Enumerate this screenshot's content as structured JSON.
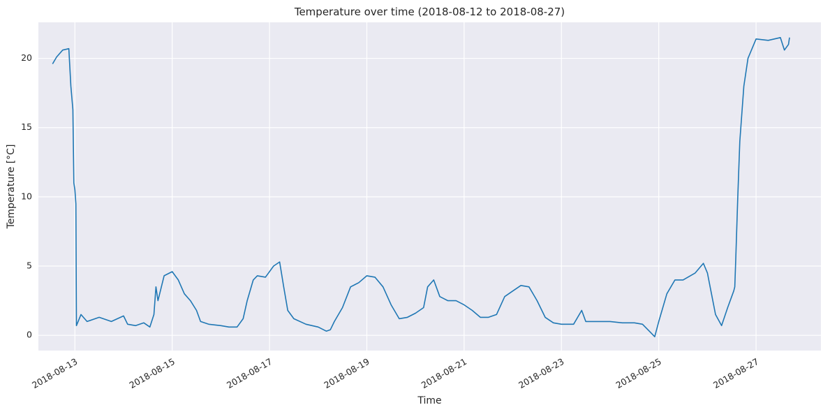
{
  "chart_data": {
    "type": "line",
    "title": "Temperature over time (2018-08-12 to 2018-08-27)",
    "xlabel": "Time",
    "ylabel": "Temperature [°C]",
    "x_range": [
      "2018-08-12T06:00",
      "2018-08-28T08:00"
    ],
    "ylim": [
      -1.1,
      22.6
    ],
    "x_ticks": [
      "2018-08-13",
      "2018-08-15",
      "2018-08-17",
      "2018-08-19",
      "2018-08-21",
      "2018-08-23",
      "2018-08-25",
      "2018-08-27"
    ],
    "y_ticks": [
      0,
      5,
      10,
      15,
      20
    ],
    "grid": true,
    "colors": {
      "background": "#eaeaf2",
      "grid": "#ffffff",
      "line": "#1f77b4",
      "text": "#262626"
    },
    "series": [
      {
        "color": "#1f77b4",
        "points": [
          [
            "2018-08-12T13:00",
            19.6
          ],
          [
            "2018-08-12T15:00",
            20.1
          ],
          [
            "2018-08-12T18:00",
            20.6
          ],
          [
            "2018-08-12T21:00",
            20.7
          ],
          [
            "2018-08-12T22:00",
            18.0
          ],
          [
            "2018-08-12T23:00",
            16.3
          ],
          [
            "2018-08-12T23:30",
            11.0
          ],
          [
            "2018-08-13T00:00",
            10.5
          ],
          [
            "2018-08-13T00:30",
            9.5
          ],
          [
            "2018-08-13T00:45",
            0.7
          ],
          [
            "2018-08-13T03:00",
            1.5
          ],
          [
            "2018-08-13T06:00",
            1.0
          ],
          [
            "2018-08-13T12:00",
            1.3
          ],
          [
            "2018-08-13T18:00",
            1.0
          ],
          [
            "2018-08-14T00:00",
            1.4
          ],
          [
            "2018-08-14T02:00",
            0.8
          ],
          [
            "2018-08-14T06:00",
            0.7
          ],
          [
            "2018-08-14T10:00",
            0.9
          ],
          [
            "2018-08-14T13:00",
            0.6
          ],
          [
            "2018-08-14T15:00",
            1.5
          ],
          [
            "2018-08-14T16:00",
            3.5
          ],
          [
            "2018-08-14T17:00",
            2.5
          ],
          [
            "2018-08-14T20:00",
            4.3
          ],
          [
            "2018-08-15T00:00",
            4.6
          ],
          [
            "2018-08-15T03:00",
            4.0
          ],
          [
            "2018-08-15T06:00",
            3.0
          ],
          [
            "2018-08-15T09:00",
            2.5
          ],
          [
            "2018-08-15T12:00",
            1.8
          ],
          [
            "2018-08-15T14:00",
            1.0
          ],
          [
            "2018-08-15T18:00",
            0.8
          ],
          [
            "2018-08-16T00:00",
            0.7
          ],
          [
            "2018-08-16T04:00",
            0.6
          ],
          [
            "2018-08-16T08:00",
            0.6
          ],
          [
            "2018-08-16T11:00",
            1.2
          ],
          [
            "2018-08-16T13:00",
            2.5
          ],
          [
            "2018-08-16T16:00",
            4.0
          ],
          [
            "2018-08-16T18:00",
            4.3
          ],
          [
            "2018-08-16T22:00",
            4.2
          ],
          [
            "2018-08-17T02:00",
            5.0
          ],
          [
            "2018-08-17T05:00",
            5.3
          ],
          [
            "2018-08-17T07:00",
            3.5
          ],
          [
            "2018-08-17T09:00",
            1.8
          ],
          [
            "2018-08-17T12:00",
            1.2
          ],
          [
            "2018-08-17T18:00",
            0.8
          ],
          [
            "2018-08-18T00:00",
            0.6
          ],
          [
            "2018-08-18T04:00",
            0.3
          ],
          [
            "2018-08-18T06:00",
            0.4
          ],
          [
            "2018-08-18T08:00",
            1.0
          ],
          [
            "2018-08-18T12:00",
            2.0
          ],
          [
            "2018-08-18T16:00",
            3.5
          ],
          [
            "2018-08-18T20:00",
            3.8
          ],
          [
            "2018-08-19T00:00",
            4.3
          ],
          [
            "2018-08-19T04:00",
            4.2
          ],
          [
            "2018-08-19T08:00",
            3.5
          ],
          [
            "2018-08-19T12:00",
            2.2
          ],
          [
            "2018-08-19T16:00",
            1.2
          ],
          [
            "2018-08-19T20:00",
            1.3
          ],
          [
            "2018-08-20T00:00",
            1.6
          ],
          [
            "2018-08-20T04:00",
            2.0
          ],
          [
            "2018-08-20T06:00",
            3.5
          ],
          [
            "2018-08-20T09:00",
            4.0
          ],
          [
            "2018-08-20T12:00",
            2.8
          ],
          [
            "2018-08-20T16:00",
            2.5
          ],
          [
            "2018-08-20T20:00",
            2.5
          ],
          [
            "2018-08-21T00:00",
            2.2
          ],
          [
            "2018-08-21T04:00",
            1.8
          ],
          [
            "2018-08-21T08:00",
            1.3
          ],
          [
            "2018-08-21T12:00",
            1.3
          ],
          [
            "2018-08-21T16:00",
            1.5
          ],
          [
            "2018-08-21T20:00",
            2.8
          ],
          [
            "2018-08-22T00:00",
            3.2
          ],
          [
            "2018-08-22T04:00",
            3.6
          ],
          [
            "2018-08-22T08:00",
            3.5
          ],
          [
            "2018-08-22T12:00",
            2.5
          ],
          [
            "2018-08-22T16:00",
            1.3
          ],
          [
            "2018-08-22T20:00",
            0.9
          ],
          [
            "2018-08-23T00:00",
            0.8
          ],
          [
            "2018-08-23T06:00",
            0.8
          ],
          [
            "2018-08-23T10:00",
            1.8
          ],
          [
            "2018-08-23T12:00",
            1.0
          ],
          [
            "2018-08-23T18:00",
            1.0
          ],
          [
            "2018-08-24T00:00",
            1.0
          ],
          [
            "2018-08-24T06:00",
            0.9
          ],
          [
            "2018-08-24T12:00",
            0.9
          ],
          [
            "2018-08-24T16:00",
            0.8
          ],
          [
            "2018-08-24T20:00",
            0.2
          ],
          [
            "2018-08-24T22:00",
            -0.1
          ],
          [
            "2018-08-25T00:00",
            1.0
          ],
          [
            "2018-08-25T04:00",
            3.0
          ],
          [
            "2018-08-25T08:00",
            4.0
          ],
          [
            "2018-08-25T12:00",
            4.0
          ],
          [
            "2018-08-25T18:00",
            4.5
          ],
          [
            "2018-08-25T22:00",
            5.2
          ],
          [
            "2018-08-26T00:00",
            4.5
          ],
          [
            "2018-08-26T02:00",
            3.0
          ],
          [
            "2018-08-26T04:00",
            1.5
          ],
          [
            "2018-08-26T07:00",
            0.7
          ],
          [
            "2018-08-26T10:00",
            2.0
          ],
          [
            "2018-08-26T13:00",
            3.2
          ],
          [
            "2018-08-26T13:30",
            3.5
          ],
          [
            "2018-08-26T14:00",
            5.5
          ],
          [
            "2018-08-26T15:00",
            10.0
          ],
          [
            "2018-08-26T16:00",
            14.0
          ],
          [
            "2018-08-26T18:00",
            18.0
          ],
          [
            "2018-08-26T20:00",
            20.0
          ],
          [
            "2018-08-27T00:00",
            21.4
          ],
          [
            "2018-08-27T06:00",
            21.3
          ],
          [
            "2018-08-27T12:00",
            21.5
          ],
          [
            "2018-08-27T14:00",
            20.6
          ],
          [
            "2018-08-27T16:00",
            21.0
          ],
          [
            "2018-08-27T16:30",
            21.5
          ]
        ]
      }
    ]
  }
}
